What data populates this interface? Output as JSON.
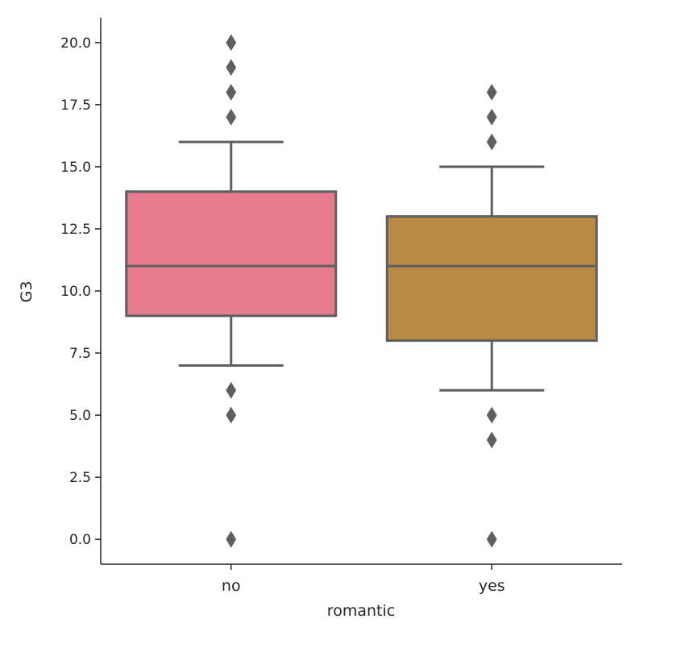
{
  "chart_data": {
    "type": "box",
    "xlabel": "romantic",
    "ylabel": "G3",
    "ylim": [
      -1.0,
      21.0
    ],
    "yticks": [
      0.0,
      2.5,
      5.0,
      7.5,
      10.0,
      12.5,
      15.0,
      17.5,
      20.0
    ],
    "ytick_labels": [
      "0.0",
      "2.5",
      "5.0",
      "7.5",
      "10.0",
      "12.5",
      "15.0",
      "17.5",
      "20.0"
    ],
    "grid": false,
    "categories": [
      "no",
      "yes"
    ],
    "boxes": [
      {
        "category": "no",
        "color": "#e77c8e",
        "whisker_low": 7,
        "q1": 9,
        "median": 11,
        "q3": 14,
        "whisker_high": 16,
        "outliers": [
          0,
          5,
          6,
          17,
          18,
          19,
          20
        ]
      },
      {
        "category": "yes",
        "color": "#b98a45",
        "whisker_low": 6,
        "q1": 8,
        "median": 11,
        "q3": 13,
        "whisker_high": 15,
        "outliers": [
          0,
          4,
          5,
          16,
          17,
          18
        ]
      }
    ],
    "line_color": "#5f5f5f",
    "axis_color": "#262626"
  }
}
